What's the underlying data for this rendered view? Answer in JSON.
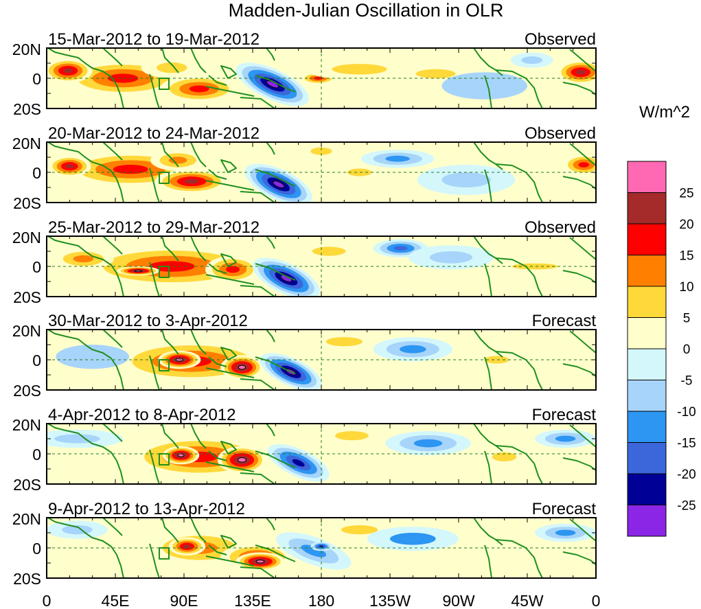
{
  "chart_data": {
    "type": "heatmap",
    "title": "Madden-Julian Oscillation in OLR",
    "units_label": "W/m^2",
    "x_ticks": [
      "0",
      "45E",
      "90E",
      "135E",
      "180",
      "135W",
      "90W",
      "45W",
      "0"
    ],
    "y_ticks": [
      "20N",
      "0",
      "20S"
    ],
    "xlim": [
      0,
      360
    ],
    "ylim": [
      -20,
      20
    ],
    "colorbar": {
      "tick_labels": [
        "25",
        "20",
        "15",
        "10",
        "5",
        "0",
        "-5",
        "-10",
        "-15",
        "-20",
        "-25"
      ],
      "colors": [
        "#ff69b4",
        "#a52a2a",
        "#ff0000",
        "#ff7f00",
        "#ffd83a",
        "#ffffcc",
        "#d4f7fb",
        "#a7d4fa",
        "#2d95f2",
        "#3c67db",
        "#000096",
        "#8c26e6"
      ]
    },
    "panels": [
      {
        "date_range": "15-Mar-2012 to 19-Mar-2012",
        "type": "Observed",
        "blobs": [
          {
            "lon": 50,
            "lat": 0,
            "rx": 40,
            "ry": 12,
            "v": 17
          },
          {
            "lon": 14,
            "lat": 5,
            "rx": 16,
            "ry": 8,
            "v": 21
          },
          {
            "lon": 100,
            "lat": -7,
            "rx": 26,
            "ry": 9,
            "v": 17
          },
          {
            "lon": 82,
            "lat": 7,
            "rx": 20,
            "ry": 7,
            "v": 9
          },
          {
            "lon": 148,
            "lat": -4,
            "rx": 26,
            "ry": 10,
            "v": -30,
            "tilt": 25
          },
          {
            "lon": 178,
            "lat": 0,
            "rx": 12,
            "ry": 4,
            "v": 16
          },
          {
            "lon": 205,
            "lat": 6,
            "rx": 36,
            "ry": 7,
            "v": 7
          },
          {
            "lon": 255,
            "lat": 3,
            "rx": 26,
            "ry": 6,
            "v": 10
          },
          {
            "lon": 287,
            "lat": -5,
            "rx": 28,
            "ry": 9,
            "v": -5
          },
          {
            "lon": 350,
            "lat": 4,
            "rx": 16,
            "ry": 8,
            "v": 21
          },
          {
            "lon": 318,
            "lat": 12,
            "rx": 14,
            "ry": 5,
            "v": -6
          }
        ]
      },
      {
        "date_range": "20-Mar-2012 to 24-Mar-2012",
        "type": "Observed",
        "blobs": [
          {
            "lon": 55,
            "lat": 2,
            "rx": 46,
            "ry": 12,
            "v": 18
          },
          {
            "lon": 15,
            "lat": 4,
            "rx": 14,
            "ry": 7,
            "v": 21
          },
          {
            "lon": 95,
            "lat": -6,
            "rx": 24,
            "ry": 8,
            "v": 23
          },
          {
            "lon": 86,
            "lat": 8,
            "rx": 18,
            "ry": 7,
            "v": 15
          },
          {
            "lon": 152,
            "lat": -8,
            "rx": 24,
            "ry": 10,
            "v": -30,
            "tilt": 25
          },
          {
            "lon": 180,
            "lat": 14,
            "rx": 14,
            "ry": 5,
            "v": 9
          },
          {
            "lon": 230,
            "lat": 9,
            "rx": 24,
            "ry": 6,
            "v": -13
          },
          {
            "lon": 205,
            "lat": 0,
            "rx": 16,
            "ry": 5,
            "v": 7
          },
          {
            "lon": 275,
            "lat": -5,
            "rx": 32,
            "ry": 10,
            "v": -6
          },
          {
            "lon": 352,
            "lat": 5,
            "rx": 14,
            "ry": 7,
            "v": 19
          }
        ]
      },
      {
        "date_range": "25-Mar-2012 to 29-Mar-2012",
        "type": "Observed",
        "blobs": [
          {
            "lon": 82,
            "lat": 0,
            "rx": 60,
            "ry": 14,
            "v": 17
          },
          {
            "lon": 60,
            "lat": -3,
            "rx": 14,
            "ry": 3,
            "v": 27
          },
          {
            "lon": 24,
            "lat": 5,
            "rx": 20,
            "ry": 7,
            "v": 13
          },
          {
            "lon": 122,
            "lat": -2,
            "rx": 18,
            "ry": 9,
            "v": 18
          },
          {
            "lon": 157,
            "lat": -8,
            "rx": 24,
            "ry": 10,
            "v": -30,
            "tilt": 25
          },
          {
            "lon": 185,
            "lat": 10,
            "rx": 22,
            "ry": 6,
            "v": 9
          },
          {
            "lon": 232,
            "lat": 12,
            "rx": 18,
            "ry": 6,
            "v": -16
          },
          {
            "lon": 265,
            "lat": 6,
            "rx": 28,
            "ry": 8,
            "v": -6
          },
          {
            "lon": 320,
            "lat": 0,
            "rx": 30,
            "ry": 4,
            "v": 8
          }
        ]
      },
      {
        "date_range": "30-Mar-2012 to 3-Apr-2012",
        "type": "Forecast",
        "blobs": [
          {
            "lon": 95,
            "lat": -1,
            "rx": 52,
            "ry": 14,
            "v": 17
          },
          {
            "lon": 87,
            "lat": 0,
            "rx": 14,
            "ry": 6,
            "v": 27
          },
          {
            "lon": 128,
            "lat": -5,
            "rx": 14,
            "ry": 8,
            "v": 27
          },
          {
            "lon": 160,
            "lat": -8,
            "rx": 22,
            "ry": 9,
            "v": -30,
            "tilt": 25
          },
          {
            "lon": 195,
            "lat": 12,
            "rx": 24,
            "ry": 6,
            "v": 9
          },
          {
            "lon": 240,
            "lat": 7,
            "rx": 26,
            "ry": 8,
            "v": -13
          },
          {
            "lon": 295,
            "lat": 0,
            "rx": 16,
            "ry": 5,
            "v": 6
          },
          {
            "lon": 30,
            "lat": 2,
            "rx": 24,
            "ry": 8,
            "v": -5
          }
        ]
      },
      {
        "date_range": "4-Apr-2012 to 8-Apr-2012",
        "type": "Forecast",
        "blobs": [
          {
            "lon": 100,
            "lat": -2,
            "rx": 48,
            "ry": 14,
            "v": 17
          },
          {
            "lon": 88,
            "lat": -1,
            "rx": 12,
            "ry": 6,
            "v": 27
          },
          {
            "lon": 128,
            "lat": -4,
            "rx": 16,
            "ry": 9,
            "v": 27
          },
          {
            "lon": 165,
            "lat": -6,
            "rx": 22,
            "ry": 9,
            "v": -23,
            "tilt": 25
          },
          {
            "lon": 200,
            "lat": 12,
            "rx": 22,
            "ry": 6,
            "v": 9
          },
          {
            "lon": 250,
            "lat": 7,
            "rx": 28,
            "ry": 8,
            "v": -12
          },
          {
            "lon": 300,
            "lat": -2,
            "rx": 16,
            "ry": 6,
            "v": 6
          },
          {
            "lon": 20,
            "lat": 10,
            "rx": 30,
            "ry": 6,
            "v": -6
          },
          {
            "lon": 340,
            "lat": 10,
            "rx": 20,
            "ry": 6,
            "v": -11
          }
        ]
      },
      {
        "date_range": "9-Apr-2012 to 13-Apr-2012",
        "type": "Forecast",
        "blobs": [
          {
            "lon": 100,
            "lat": 0,
            "rx": 36,
            "ry": 12,
            "v": 14
          },
          {
            "lon": 92,
            "lat": 1,
            "rx": 12,
            "ry": 6,
            "v": 22
          },
          {
            "lon": 138,
            "lat": -6,
            "rx": 24,
            "ry": 9,
            "v": 20
          },
          {
            "lon": 140,
            "lat": -9,
            "rx": 16,
            "ry": 6,
            "v": 27
          },
          {
            "lon": 175,
            "lat": -2,
            "rx": 26,
            "ry": 9,
            "v": -14,
            "tilt": 20
          },
          {
            "lon": 180,
            "lat": 1,
            "rx": 7,
            "ry": 3,
            "v": -23
          },
          {
            "lon": 205,
            "lat": 12,
            "rx": 24,
            "ry": 6,
            "v": 9
          },
          {
            "lon": 240,
            "lat": 6,
            "rx": 30,
            "ry": 8,
            "v": -10
          },
          {
            "lon": 20,
            "lat": 12,
            "rx": 20,
            "ry": 6,
            "v": -8
          },
          {
            "lon": 340,
            "lat": 10,
            "rx": 20,
            "ry": 6,
            "v": -11
          }
        ]
      }
    ]
  }
}
